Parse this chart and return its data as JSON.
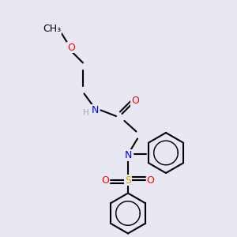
{
  "bg_color": "#e8e8f2",
  "atom_colors": {
    "C": "#000000",
    "N": "#0000ff",
    "O": "#ff0000",
    "S": "#ccaa00",
    "H": "#aaaaaa"
  },
  "bond_color": "#000000",
  "bond_width": 1.5,
  "font_size": 9,
  "title": ""
}
